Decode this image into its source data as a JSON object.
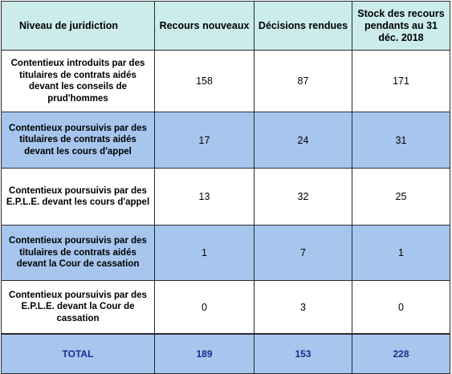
{
  "table": {
    "headers": {
      "niveau": "Niveau de juridiction",
      "recours": "Recours nouveaux",
      "decisions": "Décisions rendues",
      "stock": "Stock des recours pendants au 31 déc. 2018"
    },
    "rows": [
      {
        "label": "Contentieux introduits par des titulaires de contrats aidés devant les conseils de prud'hommes",
        "recours": "158",
        "decisions": "87",
        "stock": "171"
      },
      {
        "label": "Contentieux poursuivis par des titulaires de contrats aidés devant les cours d'appel",
        "recours": "17",
        "decisions": "24",
        "stock": "31"
      },
      {
        "label": "Contentieux poursuivis par des E.P.L.E. devant les cours d'appel",
        "recours": "13",
        "decisions": "32",
        "stock": "25"
      },
      {
        "label": "Contentieux poursuivis par des titulaires de contrats aidés devant la Cour de cassation",
        "recours": "1",
        "decisions": "7",
        "stock": "1"
      },
      {
        "label": "Contentieux poursuivis par des E.P.L.E. devant la Cour de cassation",
        "recours": "0",
        "decisions": "3",
        "stock": "0"
      }
    ],
    "total": {
      "label": "TOTAL",
      "recours": "189",
      "decisions": "153",
      "stock": "228"
    }
  },
  "colors": {
    "header_bg": "#ccecec",
    "row_alt_bg": "#a7c6ee",
    "total_text": "#1d2a8c",
    "border": "#2a2a2a"
  }
}
